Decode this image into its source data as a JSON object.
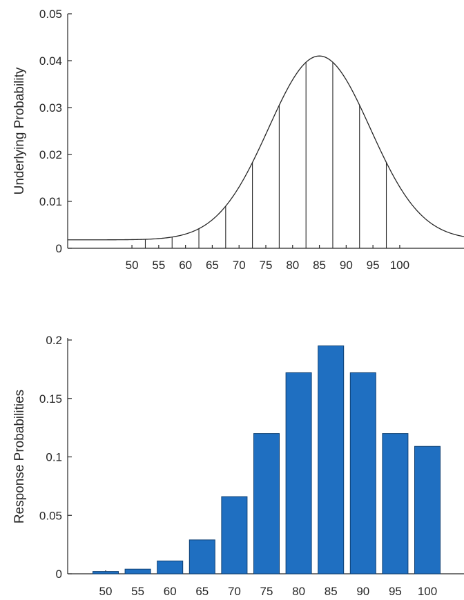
{
  "chart_data": [
    {
      "type": "line",
      "title": "",
      "xlabel": "",
      "ylabel": "Underlying Probability",
      "xlim": [
        38,
        112
      ],
      "ylim": [
        0,
        0.05
      ],
      "yticks": [
        "0",
        "0.01",
        "0.02",
        "0.03",
        "0.04",
        "0.05"
      ],
      "xticks": [
        "50",
        "55",
        "60",
        "65",
        "70",
        "75",
        "80",
        "85",
        "90",
        "95",
        "100"
      ],
      "curve": {
        "mean": 85,
        "sd": 9.5,
        "peak": 0.041,
        "baseline": 0.0018
      },
      "bin_edges": [
        52.5,
        57.5,
        62.5,
        67.5,
        72.5,
        77.5,
        82.5,
        87.5,
        92.5,
        97.5
      ],
      "grid": false,
      "legend": "none"
    },
    {
      "type": "bar",
      "title": "",
      "xlabel": "",
      "ylabel": "Response Probabilities",
      "categories": [
        "50",
        "55",
        "60",
        "65",
        "70",
        "75",
        "80",
        "85",
        "90",
        "95",
        "100"
      ],
      "values": [
        0.002,
        0.004,
        0.011,
        0.029,
        0.066,
        0.12,
        0.172,
        0.195,
        0.172,
        0.12,
        0.109
      ],
      "ylim": [
        0,
        0.2
      ],
      "yticks": [
        "0",
        "0.05",
        "0.1",
        "0.15",
        "0.2"
      ],
      "color": "#1f6fc1",
      "grid": false,
      "legend": "none"
    }
  ]
}
